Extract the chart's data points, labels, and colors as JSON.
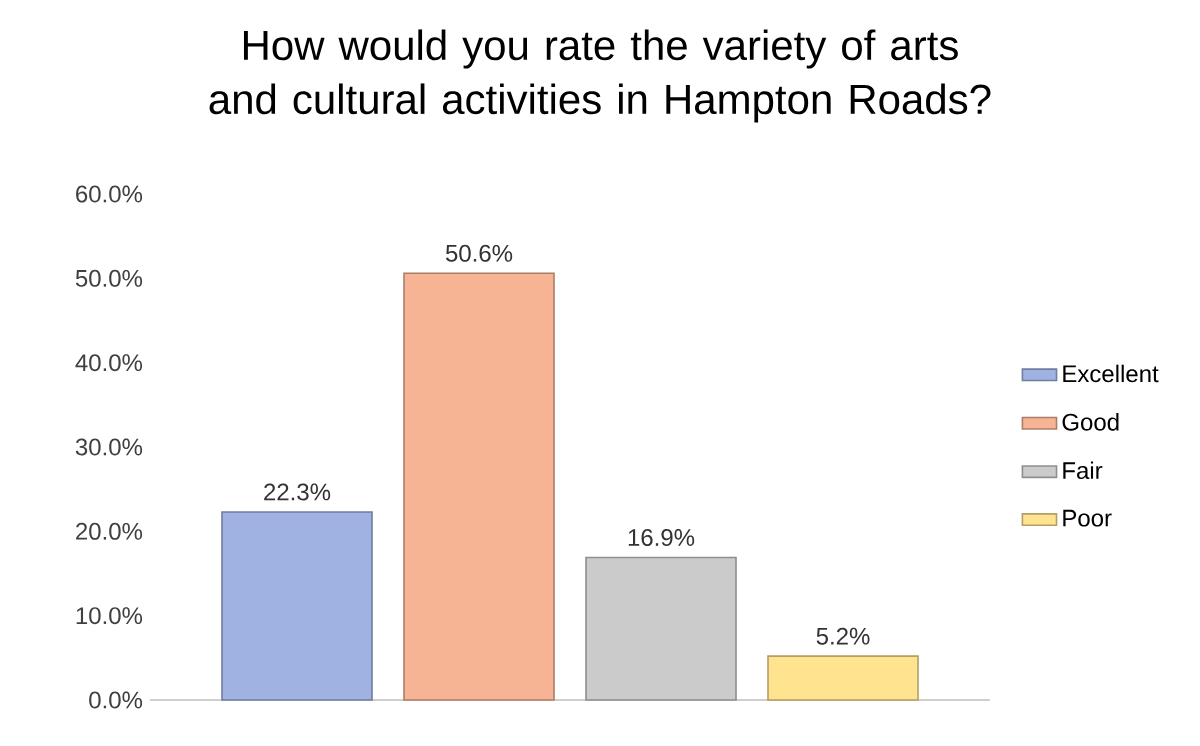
{
  "chart_data": {
    "type": "bar",
    "title": "How would you rate the variety of arts and cultural activities in Hampton Roads?",
    "categories": [
      null
    ],
    "series": [
      {
        "name": "Excellent",
        "color": "#9fb2e2",
        "values": [
          22.3
        ],
        "value_labels": [
          "22.3%"
        ]
      },
      {
        "name": "Good",
        "color": "#f6b494",
        "values": [
          50.6
        ],
        "value_labels": [
          "50.6%"
        ]
      },
      {
        "name": "Fair",
        "color": "#cbcbcb",
        "values": [
          16.9
        ],
        "value_labels": [
          "16.9%"
        ]
      },
      {
        "name": "Poor",
        "color": "#ffe38f",
        "values": [
          5.2
        ],
        "value_labels": [
          "5.2%"
        ]
      }
    ],
    "ylim": [
      0,
      60
    ],
    "yticks": [
      {
        "value": 0,
        "label": "0.0%"
      },
      {
        "value": 10,
        "label": "10.0%"
      },
      {
        "value": 20,
        "label": "20.0%"
      },
      {
        "value": 30,
        "label": "30.0%"
      },
      {
        "value": 40,
        "label": "40.0%"
      },
      {
        "value": 50,
        "label": "50.0%"
      },
      {
        "value": 60,
        "label": "60.0%"
      }
    ],
    "grid": false,
    "legend": "right"
  }
}
